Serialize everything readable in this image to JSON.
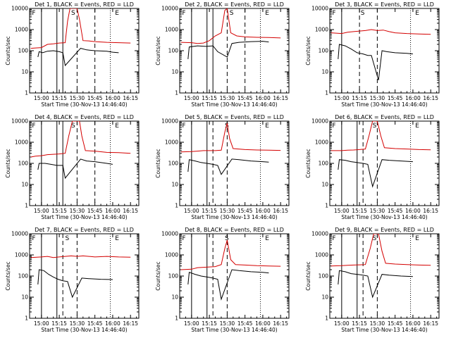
{
  "chart_data": {
    "type": "line",
    "xlabel": "Start Time (30-Nov-13 14:46:40)",
    "ylabel": "Counts/sec",
    "ylim": [
      1,
      10000
    ],
    "y_ticks": [
      "1",
      "10",
      "100",
      "1000",
      "10000"
    ],
    "x_ticks": [
      "15:00",
      "15:15",
      "15:30",
      "15:45",
      "16:00",
      "16:15"
    ],
    "x_tick_minutes": [
      0,
      15,
      30,
      45,
      60,
      75
    ],
    "x_minutes_range": [
      -10,
      82
    ],
    "series_colors": {
      "events": "#000000",
      "lld": "#d40000"
    },
    "marker_colors": {
      "solid": "#000000",
      "dashed": "#000000",
      "dotted": "#000000"
    },
    "marker_labels": [
      "F",
      "S",
      "E"
    ],
    "panels": [
      {
        "title": "Det 1, BLACK = Events, RED = LLD",
        "lld": [
          [
            -9,
            130
          ],
          [
            -5,
            135
          ],
          [
            0,
            140
          ],
          [
            5,
            200
          ],
          [
            10,
            210
          ],
          [
            15,
            230
          ],
          [
            20,
            240
          ],
          [
            22,
            2500
          ],
          [
            24,
            12000
          ],
          [
            30,
            12000
          ],
          [
            32,
            3000
          ],
          [
            35,
            300
          ],
          [
            40,
            290
          ],
          [
            45,
            270
          ],
          [
            55,
            250
          ],
          [
            65,
            240
          ],
          [
            75,
            230
          ]
        ],
        "events": [
          [
            -3,
            50
          ],
          [
            -2,
            90
          ],
          [
            1,
            80
          ],
          [
            5,
            95
          ],
          [
            10,
            100
          ],
          [
            15,
            90
          ],
          [
            18,
            80
          ],
          [
            20,
            20
          ],
          [
            33,
            130
          ],
          [
            38,
            110
          ],
          [
            45,
            100
          ],
          [
            55,
            95
          ],
          [
            60,
            85
          ],
          [
            65,
            80
          ]
        ],
        "markers": {
          "solid": [
            0,
            13,
            18
          ],
          "dashed": [
            30,
            45
          ],
          "dotted": [
            58
          ]
        },
        "marker_letters": [
          -8,
          25,
          62
        ]
      },
      {
        "title": "Det 2, BLACK = Events, RED = LLD",
        "lld": [
          [
            -9,
            250
          ],
          [
            0,
            240
          ],
          [
            5,
            220
          ],
          [
            10,
            230
          ],
          [
            15,
            300
          ],
          [
            20,
            500
          ],
          [
            25,
            700
          ],
          [
            28,
            8000
          ],
          [
            30,
            10000
          ],
          [
            33,
            700
          ],
          [
            38,
            500
          ],
          [
            45,
            450
          ],
          [
            55,
            430
          ],
          [
            65,
            420
          ],
          [
            75,
            400
          ]
        ],
        "events": [
          [
            -3,
            40
          ],
          [
            -2,
            150
          ],
          [
            5,
            170
          ],
          [
            12,
            160
          ],
          [
            18,
            170
          ],
          [
            22,
            90
          ],
          [
            30,
            50
          ],
          [
            34,
            220
          ],
          [
            40,
            250
          ],
          [
            50,
            270
          ],
          [
            60,
            280
          ],
          [
            65,
            260
          ]
        ],
        "markers": {
          "solid": [
            0,
            13,
            18
          ],
          "dashed": [
            30,
            45
          ],
          "dotted": [
            58
          ]
        },
        "marker_letters": [
          -8,
          32,
          62
        ]
      },
      {
        "title": "Det 3, BLACK = Events, RED = LLD",
        "lld": [
          [
            -9,
            700
          ],
          [
            0,
            650
          ],
          [
            5,
            750
          ],
          [
            10,
            800
          ],
          [
            15,
            850
          ],
          [
            20,
            900
          ],
          [
            25,
            1000
          ],
          [
            30,
            900
          ],
          [
            35,
            950
          ],
          [
            40,
            800
          ],
          [
            45,
            700
          ],
          [
            55,
            650
          ],
          [
            65,
            620
          ],
          [
            75,
            600
          ]
        ],
        "events": [
          [
            -3,
            40
          ],
          [
            -2,
            200
          ],
          [
            3,
            170
          ],
          [
            8,
            120
          ],
          [
            13,
            80
          ],
          [
            18,
            70
          ],
          [
            22,
            60
          ],
          [
            25,
            60
          ],
          [
            31,
            4
          ],
          [
            34,
            100
          ],
          [
            38,
            90
          ],
          [
            45,
            80
          ],
          [
            55,
            75
          ],
          [
            60,
            70
          ]
        ],
        "markers": {
          "solid": [
            0
          ],
          "dashed": [
            15,
            30
          ],
          "dotted": [
            58
          ]
        },
        "marker_letters": [
          -8,
          16,
          62
        ]
      },
      {
        "title": "Det 4, BLACK = Events, RED = LLD",
        "lld": [
          [
            -9,
            200
          ],
          [
            -5,
            220
          ],
          [
            0,
            230
          ],
          [
            5,
            260
          ],
          [
            10,
            270
          ],
          [
            15,
            280
          ],
          [
            20,
            300
          ],
          [
            23,
            2000
          ],
          [
            26,
            12000
          ],
          [
            32,
            12000
          ],
          [
            34,
            2000
          ],
          [
            37,
            400
          ],
          [
            45,
            380
          ],
          [
            55,
            330
          ],
          [
            65,
            320
          ],
          [
            75,
            300
          ]
        ],
        "events": [
          [
            -3,
            50
          ],
          [
            -2,
            100
          ],
          [
            3,
            100
          ],
          [
            8,
            90
          ],
          [
            13,
            80
          ],
          [
            18,
            80
          ],
          [
            20,
            20
          ],
          [
            33,
            160
          ],
          [
            38,
            130
          ],
          [
            45,
            120
          ],
          [
            55,
            100
          ],
          [
            60,
            90
          ]
        ],
        "markers": {
          "solid": [
            0,
            13,
            18
          ],
          "dashed": [
            30,
            45
          ],
          "dotted": [
            58
          ]
        },
        "marker_letters": [
          -8,
          25,
          62
        ]
      },
      {
        "title": "Det 5, BLACK = Events, RED = LLD",
        "lld": [
          [
            -9,
            350
          ],
          [
            0,
            360
          ],
          [
            5,
            380
          ],
          [
            10,
            400
          ],
          [
            15,
            400
          ],
          [
            20,
            400
          ],
          [
            25,
            420
          ],
          [
            28,
            3000
          ],
          [
            30,
            8000
          ],
          [
            32,
            1500
          ],
          [
            35,
            500
          ],
          [
            45,
            450
          ],
          [
            55,
            430
          ],
          [
            65,
            420
          ],
          [
            75,
            410
          ]
        ],
        "events": [
          [
            -3,
            40
          ],
          [
            -2,
            150
          ],
          [
            3,
            130
          ],
          [
            8,
            110
          ],
          [
            13,
            100
          ],
          [
            18,
            90
          ],
          [
            22,
            80
          ],
          [
            25,
            30
          ],
          [
            34,
            160
          ],
          [
            40,
            150
          ],
          [
            50,
            130
          ],
          [
            60,
            120
          ],
          [
            65,
            115
          ]
        ],
        "markers": {
          "solid": [
            0,
            13
          ],
          "dashed": [
            18,
            30
          ],
          "dotted": [
            58
          ]
        },
        "marker_letters": [
          -8,
          28,
          62
        ]
      },
      {
        "title": "Det 6, BLACK = Events, RED = LLD",
        "lld": [
          [
            -9,
            400
          ],
          [
            0,
            400
          ],
          [
            5,
            420
          ],
          [
            10,
            430
          ],
          [
            15,
            450
          ],
          [
            20,
            480
          ],
          [
            23,
            2000
          ],
          [
            26,
            12000
          ],
          [
            30,
            12000
          ],
          [
            33,
            2000
          ],
          [
            36,
            550
          ],
          [
            45,
            500
          ],
          [
            55,
            480
          ],
          [
            65,
            450
          ],
          [
            75,
            440
          ]
        ],
        "events": [
          [
            -3,
            50
          ],
          [
            -2,
            150
          ],
          [
            3,
            140
          ],
          [
            8,
            120
          ],
          [
            13,
            110
          ],
          [
            18,
            100
          ],
          [
            22,
            90
          ],
          [
            26,
            8
          ],
          [
            34,
            150
          ],
          [
            40,
            140
          ],
          [
            50,
            130
          ],
          [
            60,
            120
          ]
        ],
        "markers": {
          "solid": [
            0,
            13
          ],
          "dashed": [
            18,
            30
          ],
          "dotted": [
            58
          ]
        },
        "marker_letters": [
          -8,
          26,
          62
        ]
      },
      {
        "title": "Det 7, BLACK = Events, RED = LLD",
        "lld": [
          [
            -9,
            750
          ],
          [
            0,
            800
          ],
          [
            5,
            850
          ],
          [
            10,
            750
          ],
          [
            15,
            800
          ],
          [
            20,
            850
          ],
          [
            25,
            900
          ],
          [
            30,
            850
          ],
          [
            35,
            900
          ],
          [
            40,
            850
          ],
          [
            45,
            800
          ],
          [
            55,
            850
          ],
          [
            65,
            800
          ],
          [
            75,
            780
          ]
        ],
        "events": [
          [
            -3,
            40
          ],
          [
            -2,
            200
          ],
          [
            2,
            180
          ],
          [
            6,
            120
          ],
          [
            10,
            90
          ],
          [
            14,
            70
          ],
          [
            18,
            60
          ],
          [
            22,
            55
          ],
          [
            26,
            10
          ],
          [
            34,
            80
          ],
          [
            40,
            75
          ],
          [
            50,
            70
          ],
          [
            60,
            68
          ]
        ],
        "markers": {
          "solid": [
            0,
            13
          ],
          "dashed": [
            18,
            30
          ],
          "dotted": [
            58
          ]
        },
        "marker_letters": [
          -8,
          20,
          62
        ]
      },
      {
        "title": "Det 8, BLACK = Events, RED = LLD",
        "lld": [
          [
            -9,
            200
          ],
          [
            0,
            210
          ],
          [
            5,
            250
          ],
          [
            10,
            260
          ],
          [
            15,
            270
          ],
          [
            20,
            280
          ],
          [
            25,
            350
          ],
          [
            28,
            2000
          ],
          [
            30,
            5000
          ],
          [
            33,
            600
          ],
          [
            37,
            350
          ],
          [
            45,
            330
          ],
          [
            55,
            310
          ],
          [
            65,
            300
          ],
          [
            75,
            290
          ]
        ],
        "events": [
          [
            -3,
            40
          ],
          [
            -2,
            150
          ],
          [
            3,
            120
          ],
          [
            8,
            100
          ],
          [
            13,
            90
          ],
          [
            18,
            80
          ],
          [
            22,
            70
          ],
          [
            25,
            8
          ],
          [
            34,
            200
          ],
          [
            40,
            180
          ],
          [
            50,
            160
          ],
          [
            60,
            150
          ],
          [
            65,
            140
          ]
        ],
        "markers": {
          "solid": [
            0,
            13
          ],
          "dashed": [
            18,
            30
          ],
          "dotted": [
            58
          ]
        },
        "marker_letters": [
          -8,
          28,
          62
        ]
      },
      {
        "title": "Det 9, BLACK = Events, RED = LLD",
        "lld": [
          [
            -9,
            300
          ],
          [
            0,
            310
          ],
          [
            5,
            320
          ],
          [
            10,
            330
          ],
          [
            15,
            340
          ],
          [
            20,
            350
          ],
          [
            24,
            2000
          ],
          [
            27,
            12000
          ],
          [
            31,
            12000
          ],
          [
            34,
            1500
          ],
          [
            37,
            400
          ],
          [
            45,
            370
          ],
          [
            55,
            350
          ],
          [
            65,
            330
          ],
          [
            75,
            320
          ]
        ],
        "events": [
          [
            -3,
            40
          ],
          [
            -2,
            180
          ],
          [
            3,
            160
          ],
          [
            8,
            130
          ],
          [
            13,
            120
          ],
          [
            18,
            110
          ],
          [
            22,
            100
          ],
          [
            26,
            10
          ],
          [
            34,
            120
          ],
          [
            40,
            110
          ],
          [
            50,
            100
          ],
          [
            60,
            95
          ]
        ],
        "markers": {
          "solid": [
            0,
            13
          ],
          "dashed": [
            18,
            30
          ],
          "dotted": [
            58
          ]
        },
        "marker_letters": [
          -8,
          26,
          62
        ]
      }
    ]
  }
}
